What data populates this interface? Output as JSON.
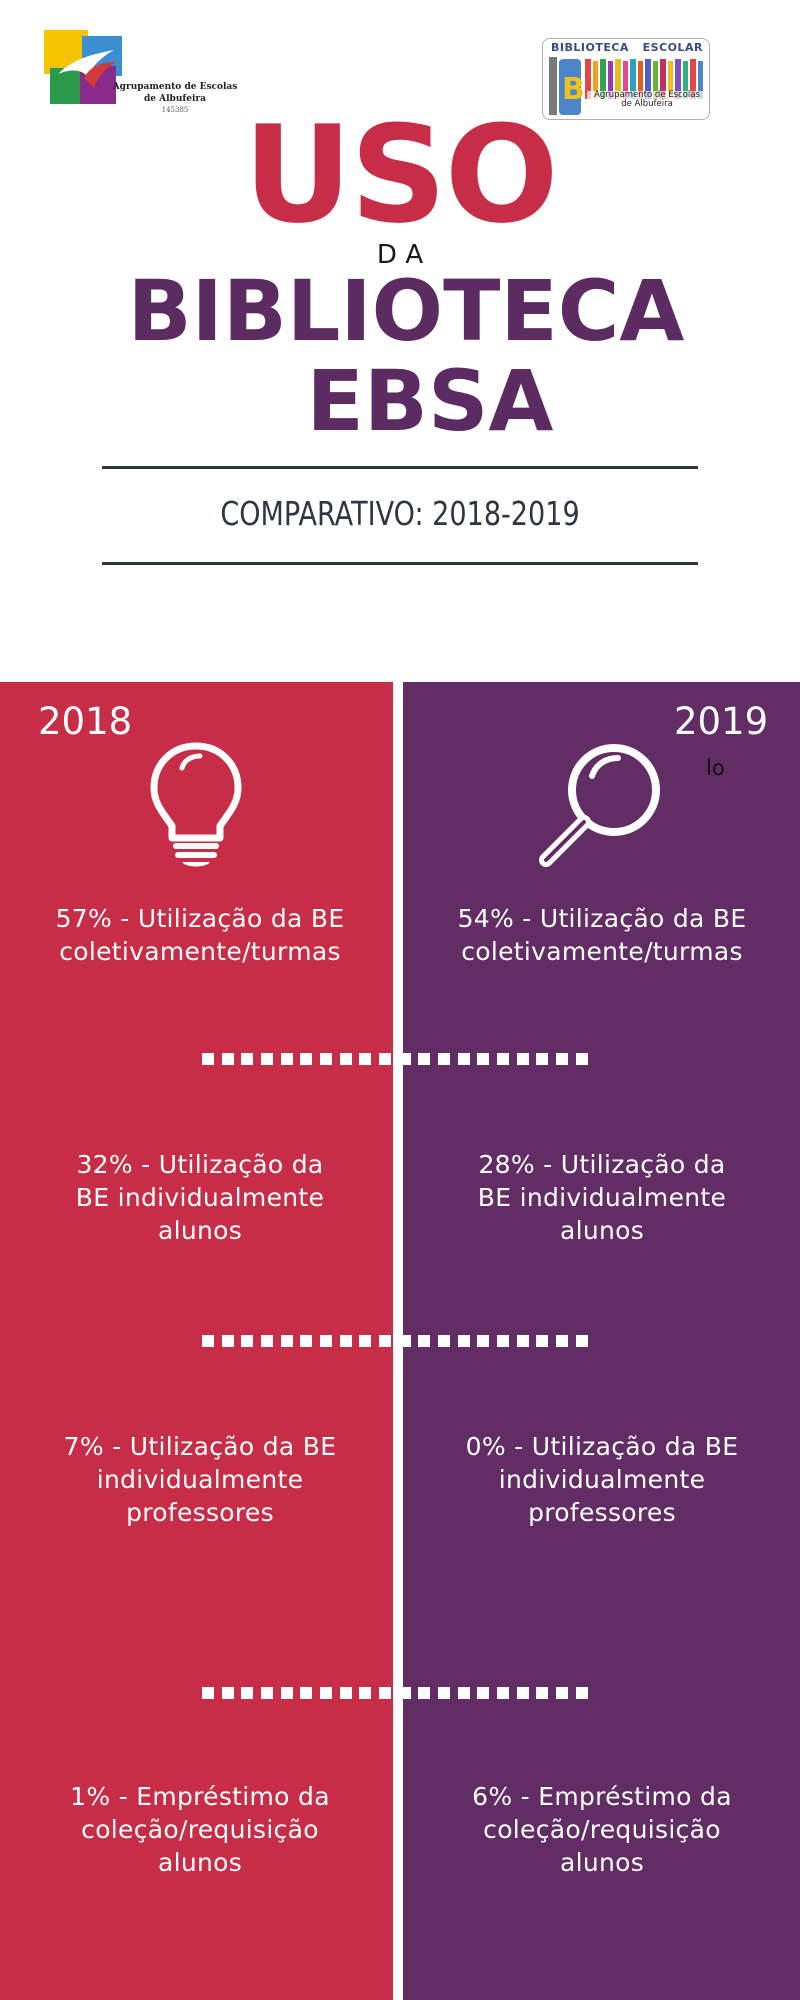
{
  "logos": {
    "left": {
      "line1": "Agrupamento de Escolas",
      "line2": "de Albufeira",
      "code": "145385"
    },
    "right": {
      "word1": "BIBLIOTECA",
      "word2": "ESCOLAR",
      "sub_line1": "Agrupamento de Escolas",
      "sub_line2": "de Albufeira"
    }
  },
  "title": {
    "line1": "USO",
    "line2": "DA",
    "line3": "BIBLIOTECA",
    "line4": "EBSA"
  },
  "subtitle": "COMPARATIVO: 2018-2019",
  "columns": {
    "left": {
      "year": "2018",
      "icon": "lightbulb-icon",
      "stats": [
        "57%  - Utilização da BE\ncoletivamente/turmas",
        "32% - Utilização da\nBE individualmente\nalunos",
        "7% - Utilização da BE\nindividualmente\nprofessores",
        "1% -  Empréstimo da\ncoleção/requisição\nalunos"
      ]
    },
    "right": {
      "year": "2019",
      "note": "lo",
      "icon": "magnifier-icon",
      "stats": [
        "54% - Utilização da BE\ncoletivamente/turmas",
        "28% - Utilização da\nBE individualmente\nalunos",
        "0% - Utilização da BE\nindividualmente\nprofessores",
        "6% -  Empréstimo da\ncoleção/requisição\nalunos"
      ]
    }
  },
  "colors": {
    "red": "#c82d47",
    "purple": "#622d64",
    "title_purple": "#5c2b62",
    "dark_text": "#2d3744"
  }
}
